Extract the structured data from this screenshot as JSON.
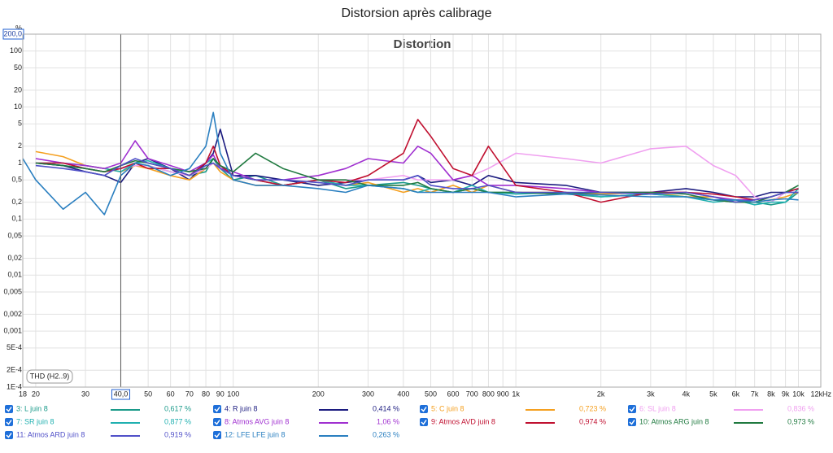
{
  "chart_data": {
    "type": "line",
    "title": "Distorsion après calibrage",
    "subtitle": "Distortion",
    "y_unit": "%",
    "measure_label": "THD (H2..9)",
    "xscale": "log",
    "yscale": "log",
    "grid": true,
    "xlim": [
      18,
      12000
    ],
    "ylim": [
      0.0001,
      200
    ],
    "cursor_x": 40,
    "xticks": [
      18,
      20,
      30,
      {
        "value": 40,
        "label": "40,0"
      },
      50,
      60,
      70,
      80,
      90,
      100,
      200,
      300,
      400,
      500,
      600,
      700,
      800,
      900,
      {
        "value": 1000,
        "label": "1k"
      },
      {
        "value": 2000,
        "label": "2k"
      },
      {
        "value": 3000,
        "label": "3k"
      },
      {
        "value": 4000,
        "label": "4k"
      },
      {
        "value": 5000,
        "label": "5k"
      },
      {
        "value": 6000,
        "label": "6k"
      },
      {
        "value": 7000,
        "label": "7k"
      },
      {
        "value": 8000,
        "label": "8k"
      },
      {
        "value": 9000,
        "label": "9k"
      },
      {
        "value": 10000,
        "label": "10k"
      },
      {
        "value": 12000,
        "label": "12kHz"
      }
    ],
    "yticks": [
      {
        "value": 200,
        "label": "200,0"
      },
      100,
      50,
      20,
      10,
      5,
      2,
      1,
      {
        "value": 0.5,
        "label": "0,5"
      },
      {
        "value": 0.2,
        "label": "0,2"
      },
      {
        "value": 0.1,
        "label": "0,1"
      },
      {
        "value": 0.05,
        "label": "0,05"
      },
      {
        "value": 0.02,
        "label": "0,02"
      },
      {
        "value": 0.01,
        "label": "0,01"
      },
      {
        "value": 0.005,
        "label": "0,005"
      },
      {
        "value": 0.002,
        "label": "0,002"
      },
      {
        "value": 0.001,
        "label": "0,001"
      },
      {
        "value": 0.0005,
        "label": "5E-4"
      },
      {
        "value": 0.0002,
        "label": "2E-4"
      },
      {
        "value": 0.0001,
        "label": "1E-4"
      }
    ],
    "x": [
      18,
      20,
      25,
      30,
      35,
      40,
      45,
      50,
      60,
      70,
      80,
      85,
      90,
      100,
      120,
      150,
      200,
      250,
      300,
      400,
      450,
      500,
      600,
      700,
      800,
      1000,
      1500,
      2000,
      3000,
      4000,
      5000,
      6000,
      7000,
      8000,
      9000,
      10000
    ],
    "series": [
      {
        "name": "3: L juin 8",
        "color": "#1a9a8a",
        "readout": "0,617 %",
        "values": [
          null,
          1.0,
          0.9,
          0.8,
          0.7,
          0.8,
          1.0,
          0.9,
          0.7,
          0.6,
          0.7,
          1.2,
          0.8,
          0.5,
          0.6,
          0.4,
          0.5,
          0.35,
          0.4,
          0.45,
          0.4,
          0.35,
          0.3,
          0.35,
          0.3,
          0.3,
          0.28,
          0.25,
          0.28,
          0.25,
          0.22,
          0.2,
          0.2,
          0.18,
          0.2,
          0.3
        ]
      },
      {
        "name": "4: R juin 8",
        "color": "#1c1c80",
        "readout": "0,414 %",
        "values": [
          null,
          1.0,
          0.9,
          0.7,
          0.6,
          0.45,
          1.0,
          1.2,
          0.8,
          0.5,
          1.0,
          1.5,
          4.0,
          0.6,
          0.6,
          0.5,
          0.4,
          0.45,
          0.5,
          0.5,
          0.6,
          0.45,
          0.5,
          0.4,
          0.6,
          0.45,
          0.4,
          0.3,
          0.3,
          0.35,
          0.3,
          0.25,
          0.25,
          0.3,
          0.3,
          0.35
        ]
      },
      {
        "name": "5: C juin 8",
        "color": "#f5a020",
        "readout": "0,723 %",
        "values": [
          null,
          1.6,
          1.3,
          0.9,
          0.8,
          0.7,
          0.9,
          0.8,
          0.6,
          0.5,
          0.8,
          1.0,
          0.7,
          0.5,
          0.4,
          0.4,
          0.5,
          0.4,
          0.45,
          0.3,
          0.35,
          0.3,
          0.4,
          0.3,
          0.4,
          0.3,
          0.3,
          0.28,
          0.3,
          0.25,
          0.25,
          0.2,
          0.2,
          0.22,
          0.25,
          0.3
        ]
      },
      {
        "name": "6: SL juin 8",
        "color": "#f0a0f0",
        "readout": "0,836 %",
        "values": [
          null,
          1.2,
          1.0,
          0.8,
          0.7,
          0.8,
          0.9,
          0.9,
          0.7,
          0.6,
          0.8,
          1.0,
          0.8,
          0.6,
          0.5,
          0.4,
          0.5,
          0.5,
          0.5,
          0.6,
          0.5,
          0.5,
          0.5,
          0.6,
          0.8,
          1.5,
          1.2,
          1.0,
          1.8,
          2.0,
          0.9,
          0.6,
          0.25,
          0.2,
          0.3,
          0.3
        ]
      },
      {
        "name": "7: SR juin 8",
        "color": "#20b0b0",
        "readout": "0,877 %",
        "values": [
          null,
          1.0,
          1.0,
          0.9,
          0.8,
          0.7,
          1.0,
          1.1,
          0.8,
          0.7,
          1.0,
          1.2,
          0.9,
          0.6,
          0.5,
          0.4,
          0.5,
          0.4,
          0.4,
          0.35,
          0.3,
          0.35,
          0.3,
          0.4,
          0.3,
          0.28,
          0.3,
          0.25,
          0.28,
          0.25,
          0.2,
          0.22,
          0.18,
          0.2,
          0.2,
          0.35
        ]
      },
      {
        "name": "8: Atmos AVG juin 8",
        "color": "#a030d0",
        "readout": "1,06 %",
        "values": [
          null,
          1.2,
          1.0,
          0.9,
          0.8,
          1.0,
          2.5,
          1.2,
          0.9,
          0.7,
          1.0,
          1.4,
          0.8,
          0.7,
          0.5,
          0.5,
          0.6,
          0.8,
          1.2,
          1.0,
          2.0,
          1.5,
          0.5,
          0.6,
          0.4,
          0.4,
          0.35,
          0.3,
          0.3,
          0.3,
          0.25,
          0.22,
          0.22,
          0.25,
          0.3,
          0.3
        ]
      },
      {
        "name": "9: Atmos AVD juin 8",
        "color": "#c01030",
        "readout": "0,974 %",
        "values": [
          null,
          1.0,
          1.0,
          0.8,
          0.7,
          0.8,
          1.0,
          0.8,
          0.8,
          0.6,
          1.0,
          2.0,
          0.9,
          0.6,
          0.5,
          0.4,
          0.5,
          0.45,
          0.6,
          1.5,
          6.0,
          3.0,
          0.8,
          0.6,
          2.0,
          0.4,
          0.3,
          0.2,
          0.3,
          0.3,
          0.28,
          0.25,
          0.22,
          0.25,
          0.3,
          0.35
        ]
      },
      {
        "name": "10: Atmos ARG juin 8",
        "color": "#207a40",
        "readout": "0,973 %",
        "values": [
          null,
          1.0,
          0.9,
          0.8,
          0.7,
          0.9,
          1.1,
          1.0,
          0.8,
          0.7,
          0.8,
          1.2,
          0.9,
          0.7,
          1.5,
          0.8,
          0.5,
          0.5,
          0.4,
          0.4,
          0.45,
          0.35,
          0.3,
          0.35,
          0.3,
          0.3,
          0.28,
          0.3,
          0.3,
          0.28,
          0.22,
          0.2,
          0.2,
          0.25,
          0.3,
          0.4
        ]
      },
      {
        "name": "11: Atmos ARD juin 8",
        "color": "#5050c8",
        "readout": "0,919 %",
        "values": [
          null,
          0.9,
          0.8,
          0.7,
          0.6,
          0.9,
          1.2,
          1.0,
          0.8,
          0.6,
          0.9,
          1.0,
          0.8,
          0.6,
          0.5,
          0.5,
          0.45,
          0.4,
          0.5,
          0.5,
          0.6,
          0.4,
          0.35,
          0.35,
          0.4,
          0.3,
          0.3,
          0.3,
          0.28,
          0.3,
          0.25,
          0.2,
          0.22,
          0.25,
          0.3,
          0.3
        ]
      },
      {
        "name": "12: LFE LFE juin 8",
        "color": "#2a7fc0",
        "readout": "0,263 %",
        "values": [
          1.2,
          0.5,
          0.15,
          0.3,
          0.12,
          0.6,
          1.0,
          0.9,
          0.6,
          0.8,
          2.0,
          8.0,
          1.5,
          0.5,
          0.4,
          0.4,
          0.35,
          0.3,
          0.4,
          0.35,
          0.3,
          0.3,
          0.3,
          0.3,
          0.3,
          0.25,
          0.28,
          0.27,
          0.25,
          0.25,
          0.22,
          0.22,
          0.2,
          0.22,
          0.23,
          0.22
        ]
      }
    ]
  }
}
